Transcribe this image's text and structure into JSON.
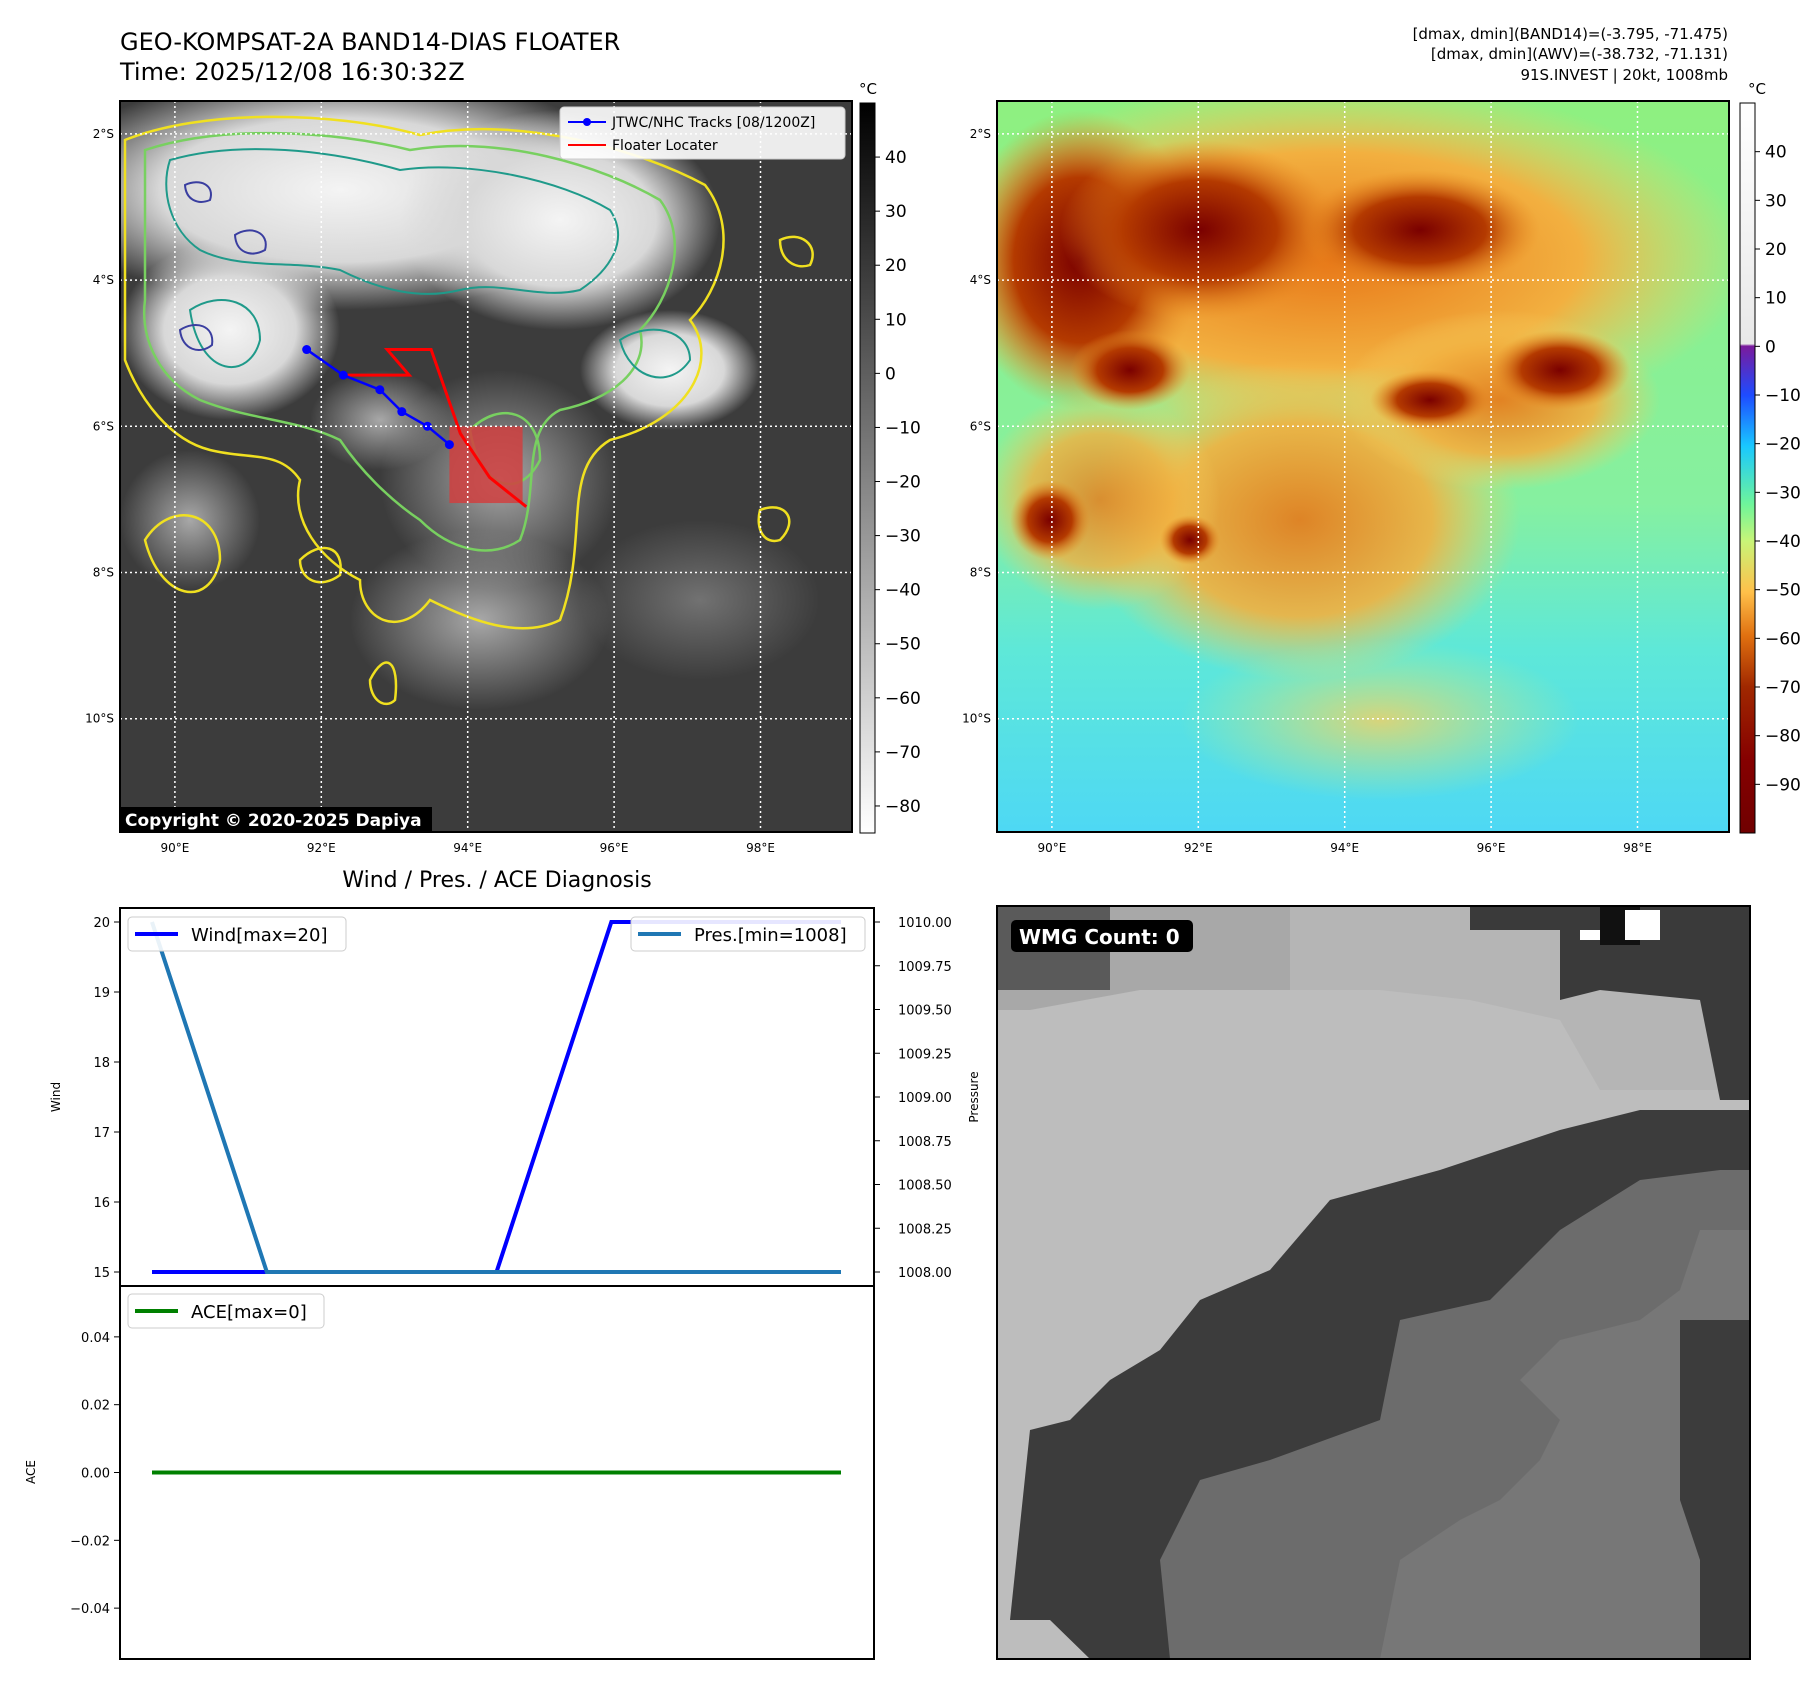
{
  "header": {
    "title_line1": "GEO-KOMPSAT-2A BAND14-DIAS FLOATER",
    "title_line2": "Time: 2025/12/08 16:30:32Z",
    "stats_line1": "[dmax, dmin](BAND14)=(-3.795, -71.475)",
    "stats_line2": "[dmax, dmin](AWV)=(-38.732, -71.131)",
    "stats_line3": "91S.INVEST | 20kt, 1008mb"
  },
  "map_axes": {
    "lon_labels": [
      "90°E",
      "92°E",
      "94°E",
      "96°E",
      "98°E"
    ],
    "lon_values": [
      90,
      92,
      94,
      96,
      98
    ],
    "lat_labels": [
      "2°S",
      "4°S",
      "6°S",
      "8°S",
      "10°S"
    ],
    "lat_values": [
      -2,
      -4,
      -6,
      -8,
      -10
    ],
    "lon_range": [
      89.25,
      99.25
    ],
    "lat_range": [
      -1.55,
      -11.55
    ]
  },
  "panel_ir": {
    "colorbar_unit": "°C",
    "colorbar_ticks": [
      40,
      30,
      20,
      10,
      0,
      -10,
      -20,
      -30,
      -40,
      -50,
      -60,
      -70,
      -80
    ],
    "colorbar_range": [
      -85,
      50
    ],
    "legend_tracks": "JTWC/NHC Tracks [08/1200Z]",
    "legend_floater": "Floater Locater",
    "copyright": "Copyright © 2020-2025 Dapiya",
    "track_color": "#0000ff",
    "floater_color": "#ff0000",
    "track_points": [
      {
        "lon": 91.8,
        "lat": -4.95
      },
      {
        "lon": 92.3,
        "lat": -5.3
      },
      {
        "lon": 92.8,
        "lat": -5.5
      },
      {
        "lon": 93.1,
        "lat": -5.8
      },
      {
        "lon": 93.45,
        "lat": -6.0
      },
      {
        "lon": 93.75,
        "lat": -6.25
      }
    ],
    "floater_path": [
      {
        "lon": 92.3,
        "lat": -5.3
      },
      {
        "lon": 93.2,
        "lat": -5.3
      },
      {
        "lon": 92.9,
        "lat": -4.95
      },
      {
        "lon": 93.5,
        "lat": -4.95
      },
      {
        "lon": 93.9,
        "lat": -6.1
      },
      {
        "lon": 94.3,
        "lat": -6.7
      },
      {
        "lon": 94.8,
        "lat": -7.1
      }
    ],
    "floater_box": {
      "lon_min": 93.75,
      "lon_max": 94.75,
      "lat_min": -7.05,
      "lat_max": -6.0
    }
  },
  "panel_awv": {
    "colorbar_unit": "°C",
    "colorbar_ticks": [
      40,
      30,
      20,
      10,
      0,
      -10,
      -20,
      -30,
      -40,
      -50,
      -60,
      -70,
      -80,
      -90
    ],
    "colorbar_range": [
      -100,
      50
    ]
  },
  "chart_data": [
    {
      "type": "line",
      "title": "Wind / Pres. / ACE Diagnosis",
      "x": [
        0,
        1,
        2,
        3,
        4,
        5,
        6
      ],
      "series": [
        {
          "name": "Wind[max=20]",
          "axis": "left",
          "color": "#0000ff",
          "values": [
            15,
            15,
            15,
            15,
            20,
            20,
            20
          ]
        },
        {
          "name": "Pres.[min=1008]",
          "axis": "right",
          "color": "#1f77b4",
          "values": [
            1010,
            1008,
            1008,
            1008,
            1008,
            1008,
            1008
          ]
        }
      ],
      "ylabel": "Wind",
      "ylim": [
        14.8,
        20.2
      ],
      "yticks": [
        15,
        16,
        17,
        18,
        19,
        20
      ],
      "ylabel_right": "Pressure",
      "ylim_right": [
        1007.92,
        1010.08
      ],
      "yticks_right": [
        "1008.00",
        "1008.25",
        "1008.50",
        "1008.75",
        "1009.00",
        "1009.25",
        "1009.50",
        "1009.75",
        "1010.00"
      ]
    },
    {
      "type": "line",
      "x": [
        0,
        1,
        2,
        3,
        4,
        5,
        6
      ],
      "series": [
        {
          "name": "ACE[max=0]",
          "color": "#008000",
          "values": [
            0,
            0,
            0,
            0,
            0,
            0,
            0
          ]
        }
      ],
      "ylabel": "ACE",
      "ylim": [
        -0.055,
        0.055
      ],
      "yticks": [
        "0.04",
        "0.02",
        "0.00",
        "−0.02",
        "−0.04"
      ]
    }
  ],
  "panel_wmg": {
    "label": "WMG Count: 0"
  }
}
